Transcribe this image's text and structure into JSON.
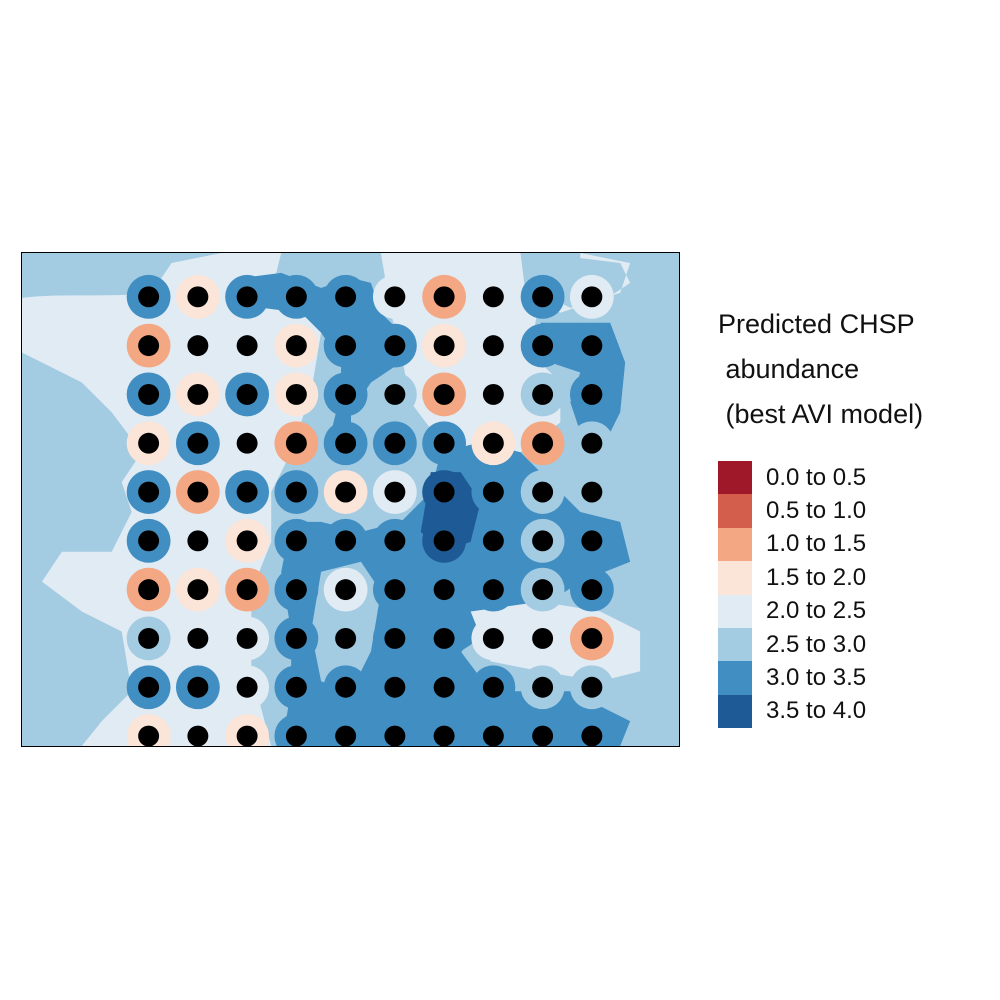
{
  "legend": {
    "title_lines": [
      "Predicted CHSP",
      " abundance",
      " (best AVI model)"
    ],
    "classes": [
      {
        "label": "0.0 to 0.5",
        "color": "#9e1829"
      },
      {
        "label": "0.5 to 1.0",
        "color": "#d45e4c"
      },
      {
        "label": "1.0 to 1.5",
        "color": "#f4a783"
      },
      {
        "label": "1.5 to 2.0",
        "color": "#fbe4d8"
      },
      {
        "label": "2.0 to 2.5",
        "color": "#e1ebf3"
      },
      {
        "label": "2.5 to 3.0",
        "color": "#a3cbe2"
      },
      {
        "label": "3.0 to 3.5",
        "color": "#418ec2"
      },
      {
        "label": "3.5 to 4.0",
        "color": "#1e5a96"
      }
    ]
  },
  "map": {
    "background_class": "2.5 to 3.0",
    "point_color": "#000000",
    "grid_rows": [
      [
        "3.0 to 3.5",
        "1.5 to 2.0",
        "3.0 to 3.5",
        "3.0 to 3.5",
        "3.0 to 3.5",
        "2.0 to 2.5",
        "1.0 to 1.5",
        "2.0 to 2.5",
        "3.0 to 3.5",
        "2.0 to 2.5"
      ],
      [
        "1.0 to 1.5",
        "2.0 to 2.5",
        "2.0 to 2.5",
        "1.5 to 2.0",
        "3.0 to 3.5",
        "3.0 to 3.5",
        "1.5 to 2.0",
        "2.0 to 2.5",
        "3.0 to 3.5",
        "3.0 to 3.5"
      ],
      [
        "3.0 to 3.5",
        "1.5 to 2.0",
        "3.0 to 3.5",
        "1.5 to 2.0",
        "3.0 to 3.5",
        "2.5 to 3.0",
        "1.0 to 1.5",
        "2.0 to 2.5",
        "2.5 to 3.0",
        "3.0 to 3.5"
      ],
      [
        "1.5 to 2.0",
        "3.0 to 3.5",
        "2.0 to 2.5",
        "1.0 to 1.5",
        "3.0 to 3.5",
        "3.0 to 3.5",
        "3.0 to 3.5",
        "1.5 to 2.0",
        "1.0 to 1.5",
        "2.5 to 3.0"
      ],
      [
        "3.0 to 3.5",
        "1.0 to 1.5",
        "3.0 to 3.5",
        "3.0 to 3.5",
        "1.5 to 2.0",
        "2.0 to 2.5",
        "3.5 to 4.0",
        "3.0 to 3.5",
        "2.5 to 3.0",
        "2.5 to 3.0"
      ],
      [
        "3.0 to 3.5",
        "2.0 to 2.5",
        "1.5 to 2.0",
        "3.0 to 3.5",
        "3.0 to 3.5",
        "3.0 to 3.5",
        "3.5 to 4.0",
        "3.0 to 3.5",
        "2.5 to 3.0",
        "3.0 to 3.5"
      ],
      [
        "1.0 to 1.5",
        "1.5 to 2.0",
        "1.0 to 1.5",
        "3.0 to 3.5",
        "2.0 to 2.5",
        "3.0 to 3.5",
        "3.0 to 3.5",
        "3.0 to 3.5",
        "2.5 to 3.0",
        "3.0 to 3.5"
      ],
      [
        "2.5 to 3.0",
        "2.0 to 2.5",
        "2.0 to 2.5",
        "3.0 to 3.5",
        "2.5 to 3.0",
        "3.0 to 3.5",
        "3.0 to 3.5",
        "2.0 to 2.5",
        "2.0 to 2.5",
        "1.0 to 1.5"
      ],
      [
        "3.0 to 3.5",
        "3.0 to 3.5",
        "2.0 to 2.5",
        "3.0 to 3.5",
        "3.0 to 3.5",
        "3.0 to 3.5",
        "3.0 to 3.5",
        "3.0 to 3.5",
        "2.5 to 3.0",
        "2.5 to 3.0"
      ],
      [
        "1.5 to 2.0",
        "2.0 to 2.5",
        "1.5 to 2.0",
        "3.0 to 3.5",
        "3.0 to 3.5",
        "3.0 to 3.5",
        "3.0 to 3.5",
        "3.0 to 3.5",
        "3.0 to 3.5",
        "3.0 to 3.5"
      ]
    ]
  }
}
